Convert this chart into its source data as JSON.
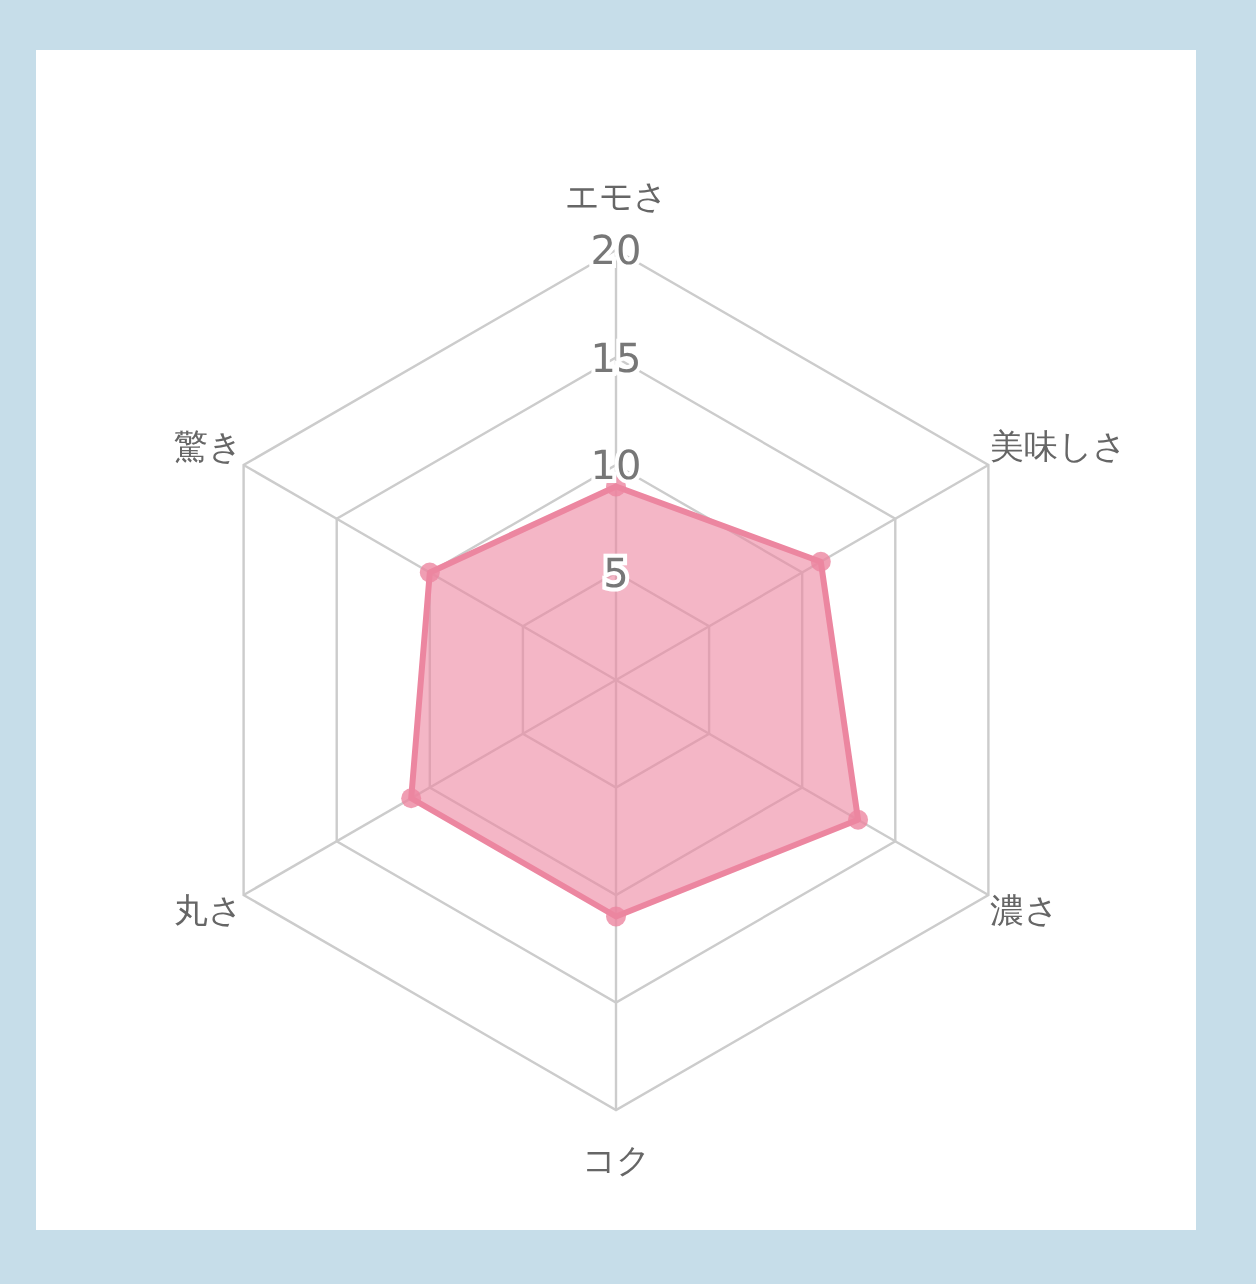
{
  "chart_data": {
    "type": "radar",
    "categories": [
      "エモさ",
      "美味しさ",
      "濃さ",
      "コク",
      "丸さ",
      "驚き"
    ],
    "series": [
      {
        "color": "#ec86a0",
        "values": [
          9,
          11,
          13,
          11,
          11,
          10
        ]
      }
    ],
    "ylim": [
      0,
      20
    ],
    "yticks": [
      5,
      10,
      15,
      20
    ],
    "grid": true,
    "marker": "circle"
  }
}
